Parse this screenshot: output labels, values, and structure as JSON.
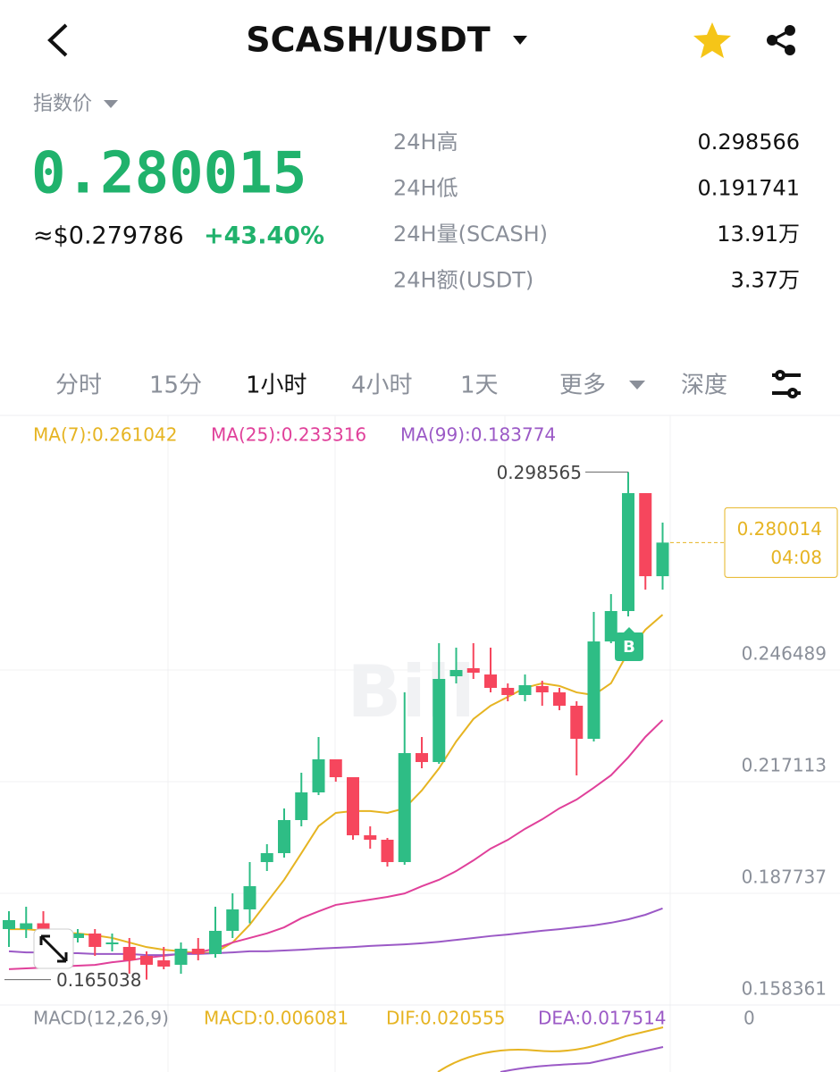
{
  "header": {
    "title": "SCASH/USDT"
  },
  "price": {
    "label": "指数价",
    "last": "0.280015",
    "usd": "≈$0.279786",
    "change": "+43.40%"
  },
  "stats": [
    {
      "label": "24H高",
      "value": "0.298566"
    },
    {
      "label": "24H低",
      "value": "0.191741"
    },
    {
      "label": "24H量(SCASH)",
      "value": "13.91万"
    },
    {
      "label": "24H额(USDT)",
      "value": "3.37万"
    }
  ],
  "tabs": [
    "分时",
    "15分",
    "1小时",
    "4小时",
    "1天",
    "更多",
    "深度"
  ],
  "chart_data": {
    "type": "candlestick",
    "up_color": "#2ebd85",
    "down_color": "#f6465d",
    "open": [
      0.17834,
      0.17834,
      0.17986,
      0.17646,
      0.17599,
      0.17716,
      0.17481,
      0.17364,
      0.17129,
      0.17011,
      0.16894,
      0.17317,
      0.17176,
      0.17787,
      0.18351,
      0.19596,
      0.19831,
      0.20701,
      0.21429,
      0.22299,
      0.21829,
      0.20301,
      0.20184,
      0.19596,
      0.22463,
      0.22228,
      0.24484,
      0.24696,
      0.24531,
      0.24179,
      0.23991,
      0.24226,
      0.24061,
      0.23709,
      0.22839,
      0.254,
      0.262,
      0.29302,
      0.27117
    ],
    "high": [
      0.18304,
      0.18421,
      0.18304,
      0.17834,
      0.17834,
      0.17834,
      0.17716,
      0.17599,
      0.17246,
      0.17364,
      0.17481,
      0.17599,
      0.18421,
      0.18774,
      0.19596,
      0.20066,
      0.21006,
      0.21946,
      0.22886,
      0.22299,
      0.21829,
      0.20536,
      0.20231,
      0.24061,
      0.22886,
      0.25354,
      0.25237,
      0.25354,
      0.25237,
      0.24296,
      0.24531,
      0.24367,
      0.24179,
      0.23826,
      0.26177,
      0.26646,
      0.298565,
      0.29302,
      0.28527
    ],
    "low": [
      0.17364,
      0.17599,
      0.17716,
      0.17481,
      0.17481,
      0.17129,
      0.17246,
      0.16659,
      0.16504,
      0.16776,
      0.16659,
      0.17011,
      0.17082,
      0.17599,
      0.17986,
      0.19361,
      0.19714,
      0.20536,
      0.21359,
      0.21711,
      0.20184,
      0.19949,
      0.19479,
      0.19526,
      0.22064,
      0.22181,
      0.24296,
      0.24414,
      0.24061,
      0.23826,
      0.23826,
      0.23709,
      0.23591,
      0.21876,
      0.22769,
      0.25354,
      0.26059,
      0.26764,
      0.26764
    ],
    "close": [
      0.18069,
      0.17986,
      0.17834,
      0.17599,
      0.17716,
      0.17364,
      0.17481,
      0.17011,
      0.16894,
      0.16847,
      0.17317,
      0.17176,
      0.17787,
      0.18351,
      0.18962,
      0.19831,
      0.20701,
      0.21429,
      0.22299,
      0.21829,
      0.20301,
      0.20184,
      0.19596,
      0.22463,
      0.22228,
      0.24414,
      0.24649,
      0.24578,
      0.24179,
      0.23991,
      0.24249,
      0.24061,
      0.23709,
      0.22839,
      0.254,
      0.262,
      0.29302,
      0.27117,
      0.28001
    ],
    "series": [
      {
        "name": "MA(7):0.261042",
        "color": "#e6b422",
        "values": [
          0.1783,
          0.1783,
          0.1779,
          0.1774,
          0.1772,
          0.1767,
          0.176,
          0.1748,
          0.1736,
          0.1729,
          0.1725,
          0.172,
          0.1722,
          0.1748,
          0.1795,
          0.1854,
          0.1913,
          0.1983,
          0.2054,
          0.2089,
          0.2094,
          0.2094,
          0.2089,
          0.2101,
          0.2148,
          0.2206,
          0.2277,
          0.2336,
          0.2371,
          0.2394,
          0.2418,
          0.243,
          0.2423,
          0.2406,
          0.2399,
          0.243,
          0.2512,
          0.2571,
          0.261042
        ]
      },
      {
        "name": "MA(25):0.233316",
        "color": "#e0409a",
        "values": [
          0.1678,
          0.168,
          0.1682,
          0.1685,
          0.1687,
          0.1689,
          0.1696,
          0.1701,
          0.1708,
          0.1713,
          0.1718,
          0.1722,
          0.1732,
          0.1748,
          0.176,
          0.1772,
          0.1788,
          0.1812,
          0.183,
          0.1847,
          0.1854,
          0.1861,
          0.1868,
          0.1877,
          0.1896,
          0.1913,
          0.1936,
          0.1964,
          0.1995,
          0.2018,
          0.2047,
          0.2072,
          0.2101,
          0.2124,
          0.2155,
          0.2188,
          0.2235,
          0.2289,
          0.233316
        ]
      },
      {
        "name": "MA(99):0.183774",
        "color": "#9b59c6",
        "values": [
          0.1725,
          0.1722,
          0.1722,
          0.172,
          0.172,
          0.1718,
          0.1718,
          0.1718,
          0.1715,
          0.1715,
          0.1718,
          0.1718,
          0.172,
          0.1722,
          0.1725,
          0.1725,
          0.1727,
          0.1729,
          0.1732,
          0.1734,
          0.1736,
          0.1739,
          0.1741,
          0.1743,
          0.1746,
          0.175,
          0.1755,
          0.176,
          0.1765,
          0.1769,
          0.1774,
          0.1779,
          0.1783,
          0.1788,
          0.1793,
          0.18,
          0.1809,
          0.1821,
          0.183774
        ]
      }
    ],
    "ylim": [
      0.158361,
      0.313469
    ],
    "yticks": [
      0.246489,
      0.217113,
      0.187737,
      0.158361
    ],
    "grid": true,
    "max": 0.298565,
    "min": 0.165038,
    "last_price": {
      "value": 0.280014,
      "countdown": "04:08"
    },
    "marker": "B"
  },
  "macd": {
    "title": "MACD(12,26,9)",
    "macd": "MACD:0.006081",
    "dif": "DIF:0.020555",
    "dea": "DEA:0.017514",
    "zero": "0"
  }
}
